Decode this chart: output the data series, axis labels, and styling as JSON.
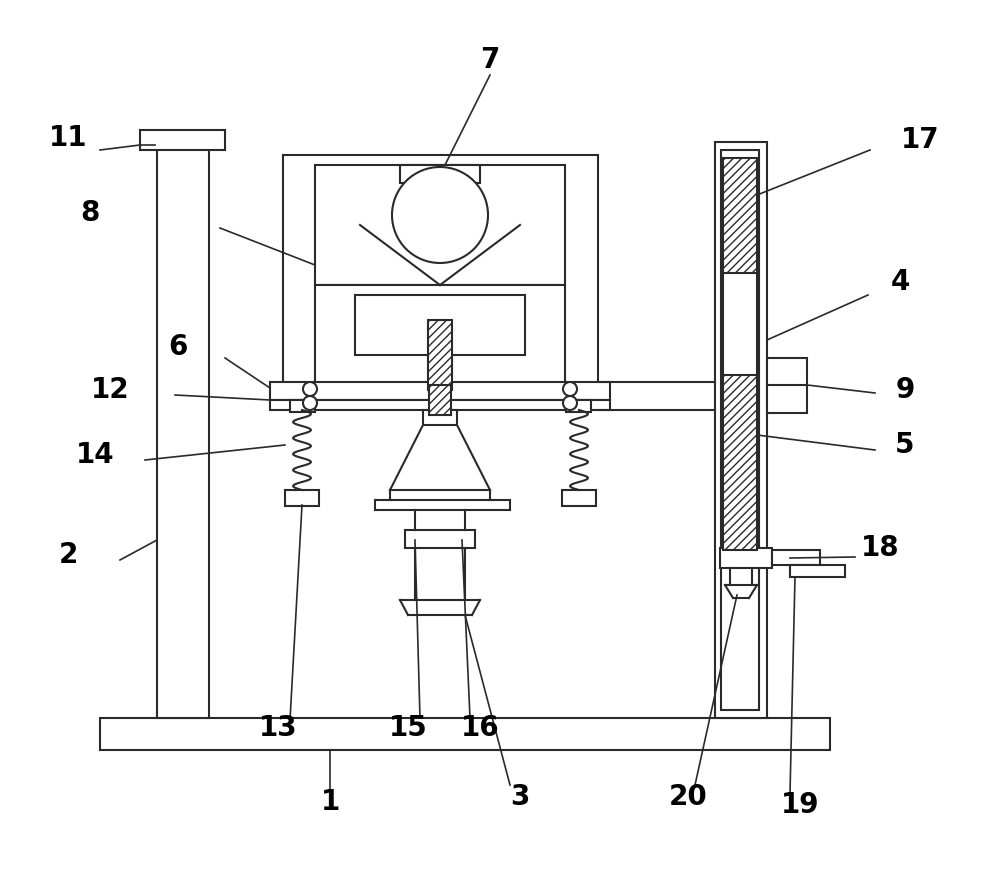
{
  "bg_color": "#ffffff",
  "line_color": "#2a2a2a",
  "lw": 1.5,
  "label_fontsize": 20
}
